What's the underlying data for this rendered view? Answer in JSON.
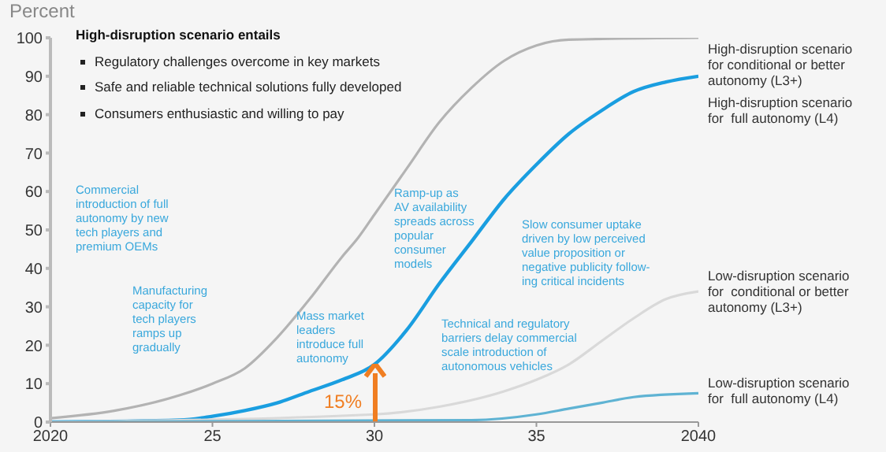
{
  "chart_data": {
    "type": "line",
    "ylabel": "Percent",
    "xlim": [
      2020,
      2040
    ],
    "ylim": [
      0,
      100
    ],
    "xticks": [
      {
        "value": 2020,
        "label": "2020"
      },
      {
        "value": 2025,
        "label": "25"
      },
      {
        "value": 2030,
        "label": "30"
      },
      {
        "value": 2035,
        "label": "35"
      },
      {
        "value": 2040,
        "label": "2040"
      }
    ],
    "yticks": [
      0,
      10,
      20,
      30,
      40,
      50,
      60,
      70,
      80,
      90,
      100
    ],
    "grid": false,
    "legend": false,
    "series": [
      {
        "name": "High-disruption scenario\nfor conditional or better\nautonomy (L3+)",
        "color": "#b3b3b3",
        "x": [
          2020,
          2022,
          2024,
          2025,
          2026,
          2027,
          2028,
          2029,
          2029.5,
          2030,
          2031,
          2032,
          2033,
          2034,
          2035,
          2036,
          2040
        ],
        "values": [
          1,
          3,
          7,
          10,
          14,
          22,
          32,
          43,
          48,
          54,
          66,
          78,
          87,
          94,
          98,
          99.5,
          100
        ]
      },
      {
        "name": "High-disruption scenario\nfor  full autonomy (L4)",
        "color": "#1a9ee0",
        "x": [
          2020,
          2024,
          2025,
          2026,
          2027,
          2028,
          2029,
          2030,
          2031,
          2032,
          2033,
          2034,
          2035,
          2036,
          2037,
          2038,
          2039,
          2040
        ],
        "values": [
          0,
          0.5,
          1.5,
          3,
          5,
          8,
          11,
          15,
          24,
          36,
          47,
          58,
          67,
          75,
          81,
          86,
          88.5,
          90
        ]
      },
      {
        "name": "Low-disruption scenario\nfor  conditional or better\nautonomy (L3+)",
        "color": "#d9d9d9",
        "x": [
          2020,
          2030,
          2032,
          2034,
          2035,
          2036,
          2037,
          2038,
          2039,
          2040
        ],
        "values": [
          0,
          2,
          4,
          8,
          11,
          15,
          21,
          27,
          32,
          34
        ]
      },
      {
        "name": "Low-disruption scenario\nfor  full autonomy (L4)",
        "color": "#5fb3d3",
        "x": [
          2020,
          2033,
          2035,
          2036,
          2037,
          2038,
          2040
        ],
        "values": [
          0,
          0.5,
          2,
          3.5,
          5,
          6.5,
          7.5
        ]
      }
    ],
    "annotations": [
      "High-disruption scenario entails",
      "Regulatory challenges overcome in key markets",
      "Safe and reliable technical solutions fully developed",
      "Consumers enthusiastic and willing to pay",
      "Commercial\nintroduction of full\nautonomy by new\ntech players and\npremium OEMs",
      "Manufacturing\ncapacity for\ntech players\nramps up\ngradually",
      "Mass market\nleaders\nintroduce full\nautonomy",
      "Ramp-up as\nAV availability\nspreads across\npopular\nconsumer\nmodels",
      "Slow consumer uptake\ndriven by low perceived\nvalue proposition or\nnegative publicity follow-\ning critical incidents",
      "Technical and regulatory\nbarriers delay commercial\nscale introduction of\nautonomous vehicles",
      {
        "text": "15%",
        "x": 2030,
        "y": 15
      }
    ]
  }
}
